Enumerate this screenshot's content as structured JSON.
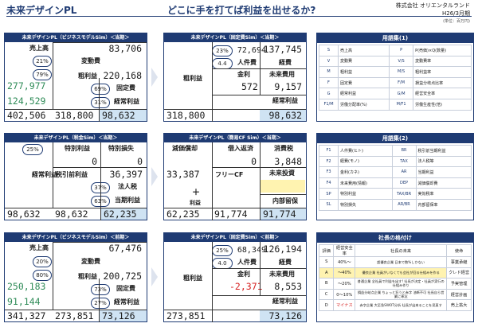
{
  "header": {
    "title": "未来デザインPL",
    "subtitle": "どこに手を打てば利益を出せるか?",
    "company": "株式会社 オリエンタルランド",
    "period": "H26/3月期",
    "unit": "(単位：百万円)"
  },
  "pl_now": {
    "title": "未来デザインPL（ビジネスモデルSim）＜当期＞",
    "sales_label": "売上高",
    "sales": "83,706",
    "vc_ratio": "21%",
    "vc_label": "変動費",
    "gp_ratio": "79%",
    "gp_label": "粗利益",
    "gp": "220,168",
    "fc_ratio": "69%",
    "fc_label": "固定費",
    "op_ratio": "31%",
    "op_label": "経常利益",
    "left_upper": "277,977",
    "left_lower": "124,529",
    "bottom1": "402,506",
    "bottom2": "318,800",
    "bottom3": "98,632"
  },
  "fc_now": {
    "title": "未来デザインPL（固定費Sim）＜当期＞",
    "r1": "23%",
    "r2": "4.4",
    "v1": "72,694",
    "v2": "137,745",
    "personnel_label": "人件費",
    "expense_label": "経費",
    "gp_label": "粗利益",
    "rate_label": "金利",
    "future_label": "未来費用",
    "rate": "572",
    "future": "9,157",
    "op_label": "経常利益",
    "gp": "318,800",
    "op": "98,632"
  },
  "cf_now": {
    "title": "未来デザインPL（税金Sim）＜当期＞",
    "tax_rate": "25%",
    "special_gain_label": "特別利益",
    "special_loss_label": "特別損失",
    "special_gain": "0",
    "special_loss": "0",
    "op_label": "経常利益",
    "pretax_label": "税引前利益",
    "pretax": "36,397",
    "r37": "37%",
    "tax_label": "法人税",
    "r63": "63%",
    "net_label": "当期利益",
    "b1": "98,632",
    "b2": "98,632",
    "b3": "62,235"
  },
  "cf2_now": {
    "title": "未来デザインPL（簡易CF Sim）＜当期＞",
    "dep_label": "減価償却",
    "repay_label": "借入返済",
    "capex_label": "消費税",
    "repay": "0",
    "capex": "3,848",
    "dep": "33,387",
    "freecf_label": "フリーCF",
    "invest_label": "未来投資",
    "plus": "＋",
    "profit_label": "利益",
    "reserve_label": "内部留保",
    "b1": "62,235",
    "b2": "91,774",
    "b3": "91,774"
  },
  "pl_prev": {
    "title": "未来デザインPL（ビジネスモデルSim）＜前期＞",
    "sales_label": "売上高",
    "sales": "67,476",
    "vc_ratio": "20%",
    "vc_label": "変動費",
    "gp_ratio": "80%",
    "gp_label": "粗利益",
    "gp": "200,725",
    "fc_ratio": "73%",
    "fc_label": "固定費",
    "op_ratio": "27%",
    "op_label": "経常利益",
    "left_upper": "250,183",
    "left_lower": "91,144",
    "bottom1": "341,327",
    "bottom2": "273,851",
    "bottom3": "73,126"
  },
  "fc_prev": {
    "title": "未来デザインPL（固定費Sim）＜前期＞",
    "r1": "25%",
    "r2": "4.0",
    "v1": "68,349",
    "v2": "126,194",
    "personnel_label": "人件費",
    "expense_label": "経費",
    "gp_label": "粗利益",
    "rate_label": "金利",
    "future_label": "未来費用",
    "rate": "-2,371",
    "future": "8,553",
    "op_label": "経常利益",
    "gp": "273,851",
    "op": "73,126"
  },
  "glossary1": {
    "title": "用語集(1)",
    "rows": [
      [
        "S",
        "売上高",
        "P",
        "P(売価)×Q(数量)"
      ],
      [
        "V",
        "変動費",
        "V/S",
        "変動費率"
      ],
      [
        "M",
        "粗利益",
        "M/S",
        "粗利益率"
      ],
      [
        "F",
        "固定費",
        "F/M",
        "損益分岐点比率"
      ],
      [
        "G",
        "経常利益",
        "G/M",
        "経営安全率"
      ],
      [
        "F1/M",
        "労働分配率(%)",
        "M/F1",
        "労働生産性(倍)"
      ]
    ]
  },
  "glossary2": {
    "title": "用語集(2)",
    "rows": [
      [
        "F1",
        "人件費(ヒト)",
        "BR",
        "税引前当期利益"
      ],
      [
        "F2",
        "経費(モノ)",
        "TAX",
        "法人税等"
      ],
      [
        "F3",
        "金利(カネ)",
        "AR",
        "当期利益"
      ],
      [
        "F4",
        "未来費用(情報)",
        "DEP",
        "減価償却費"
      ],
      [
        "SP",
        "特別利益",
        "TAX/BR",
        "実効税率"
      ],
      [
        "SL",
        "特別損失",
        "AR/BR",
        "内部留保率"
      ]
    ]
  },
  "ranking": {
    "title": "社長の格付け",
    "headers": [
      "評価",
      "経営安全率",
      "社長の未来",
      "使命"
    ],
    "rows": [
      [
        "S",
        "40%～",
        "超優良企業 日本で数%しかない",
        "事業承継"
      ],
      [
        "A",
        "～40%",
        "優良企業 社員がいなくても会社が回る仕組みを作る",
        "クレド経営"
      ],
      [
        "B",
        "～20%",
        "普通企業 全社員で利益を出す! 社長が決定・社員が実行の仕組み作り",
        "予実管理"
      ],
      [
        "C",
        "0～10%",
        "損益分岐点企業 ちょっと狂うと赤字 油断不可 社長自ら営業に専念",
        "経営計画"
      ],
      [
        "D",
        "マイナス",
        "赤字企業 大至急SWOT分析 社長が出来ることを見直す",
        "売上拡大"
      ]
    ]
  }
}
